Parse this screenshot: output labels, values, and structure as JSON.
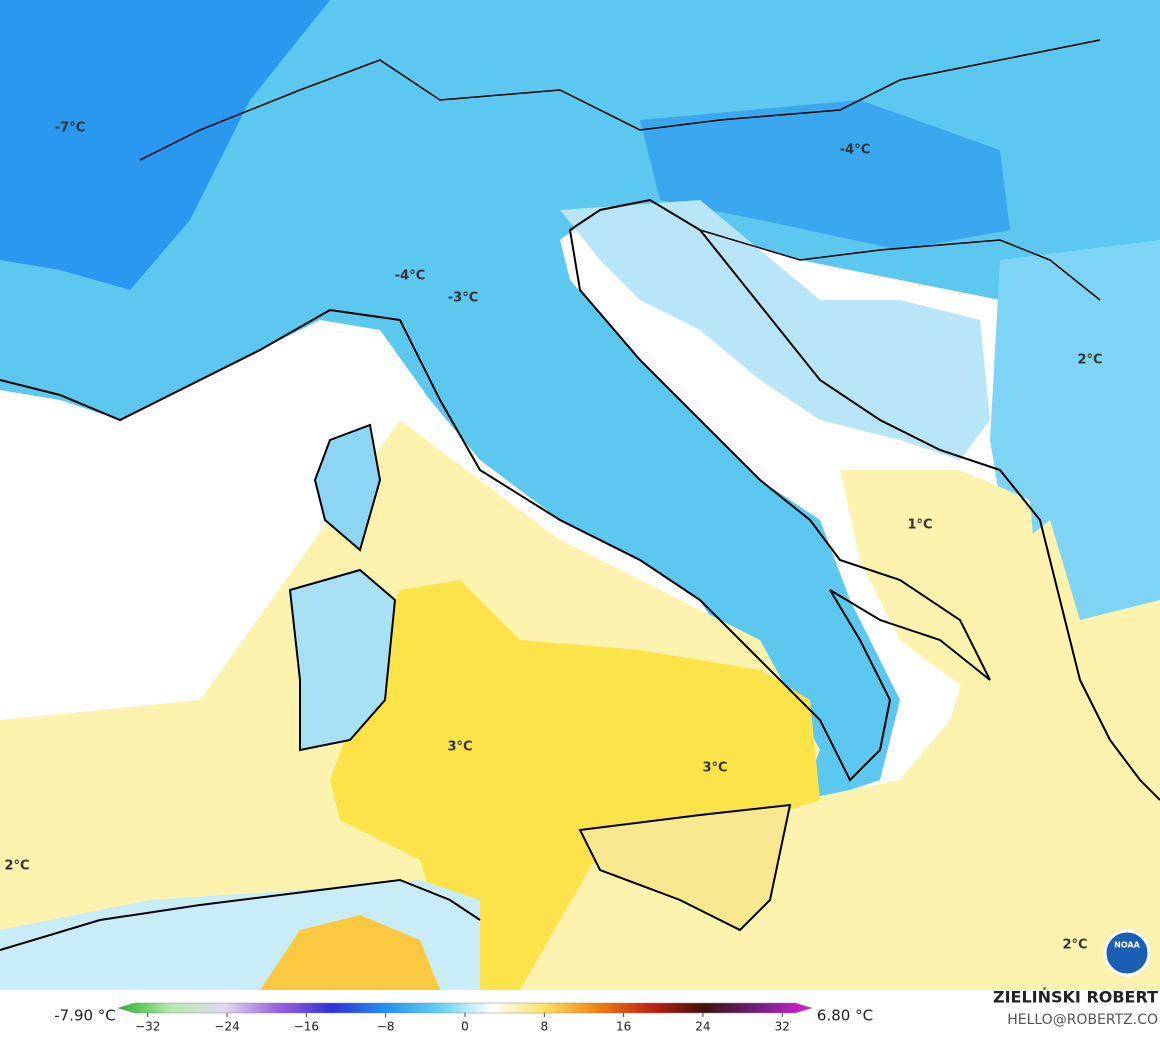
{
  "map": {
    "labels": [
      "-7°C",
      "-4°C",
      "-4°C",
      "-3°C",
      "2°C",
      "1°C",
      "3°C",
      "3°C",
      "2°C",
      "2°C"
    ]
  },
  "colorbar": {
    "min_label": "-7.90 °C",
    "max_label": "6.80 °C",
    "lim": [
      -35,
      35
    ],
    "ticks": [
      {
        "value": -32,
        "label": "−32"
      },
      {
        "value": -24,
        "label": "−24"
      },
      {
        "value": -16,
        "label": "−16"
      },
      {
        "value": -8,
        "label": "−8"
      },
      0,
      8,
      16,
      24,
      32
    ],
    "colors": [
      "#22b822",
      "#b8e8b0",
      "#e0d8f0",
      "#9a60e0",
      "#3030d8",
      "#2090f0",
      "#60d0f0",
      "#ffffff",
      "#ffe060",
      "#f08010",
      "#c02010",
      "#401010",
      "#702080",
      "#e020e0"
    ]
  },
  "credit": {
    "author": "ZIELIŃSKI ROBERT",
    "contact": "HELLO@ROBERTZ.CO",
    "logo": "NOAA"
  }
}
